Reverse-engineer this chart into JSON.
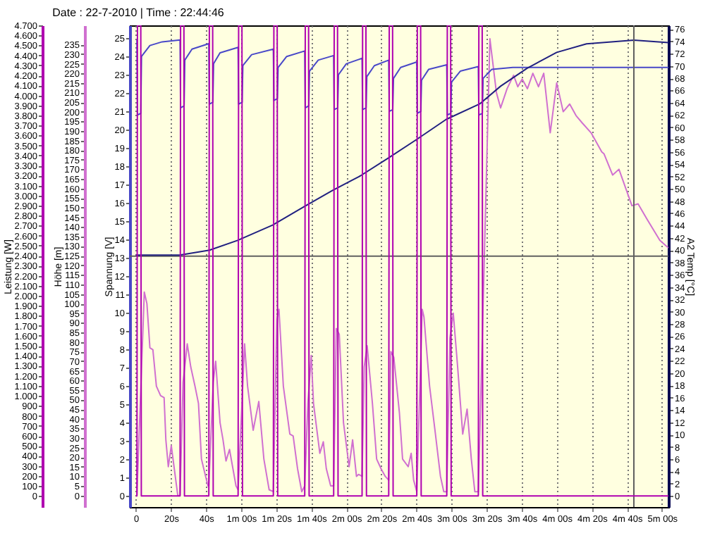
{
  "chart_data": [
    {
      "type": "line",
      "title": "Date : 22-7-2010 | Time : 22:44:46",
      "ylabel": "Spannung [V]",
      "y2label": "A2 Temp [°C]",
      "y3label": "Höhe [m]",
      "xlim": [
        -3.5,
        303.7
      ],
      "xticks": [
        0,
        {
          "value": 20,
          "label": "20s"
        },
        {
          "value": 40,
          "label": "40s"
        },
        {
          "value": 60,
          "label": "1m 00s"
        },
        {
          "value": 80,
          "label": "1m 20s"
        },
        {
          "value": 100,
          "label": "1m 40s"
        },
        {
          "value": 120,
          "label": "2m 00s"
        },
        {
          "value": 140,
          "label": "2m 20s"
        },
        {
          "value": 160,
          "label": "2m 40s"
        },
        {
          "value": 180,
          "label": "3m 00s"
        },
        {
          "value": 200,
          "label": "3m 20s"
        },
        {
          "value": 220,
          "label": "3m 40s"
        },
        {
          "value": 240,
          "label": "4m 00s"
        },
        {
          "value": 260,
          "label": "4m 20s"
        },
        {
          "value": 280,
          "label": "4m 40s"
        },
        {
          "value": 300,
          "label": "5m 00s"
        }
      ],
      "ylim": [
        -0.6,
        25.7
      ],
      "yticks": [
        0,
        1,
        2,
        3,
        4,
        5,
        6,
        7,
        8,
        9,
        10,
        11,
        12,
        13,
        14,
        15,
        16,
        17,
        18,
        19,
        20,
        21,
        22,
        23,
        24,
        25
      ],
      "y2lim": [
        -1.8,
        76.6
      ],
      "y2ticks": [
        0,
        2,
        4,
        6,
        8,
        10,
        12,
        14,
        16,
        18,
        20,
        22,
        24,
        26,
        28,
        30,
        32,
        34,
        36,
        38,
        40,
        42,
        44,
        46,
        48,
        50,
        52,
        54,
        56,
        58,
        60,
        62,
        64,
        66,
        68,
        70,
        72,
        74,
        76
      ],
      "y3lim": [
        -6,
        245
      ],
      "y3ticks": [
        0,
        5,
        10,
        15,
        20,
        25,
        30,
        35,
        40,
        45,
        50,
        55,
        60,
        65,
        70,
        75,
        80,
        85,
        90,
        95,
        100,
        105,
        110,
        115,
        120,
        125,
        130,
        135,
        140,
        145,
        150,
        155,
        160,
        165,
        170,
        175,
        180,
        185,
        190,
        195,
        200,
        205,
        210,
        215,
        220,
        225,
        230,
        235
      ],
      "grid": "x",
      "series": [
        {
          "axis": "y3",
          "color": "#d070d0",
          "x": [
            0.6,
            4.8,
            6.3,
            8,
            9.7,
            11.7,
            14.1,
            16.1,
            17.1,
            18.5,
            20.2,
            21.9,
            23.9,
            25.2,
            26.9,
            29.3,
            31.3,
            33.7,
            35.7,
            37.4,
            38.7,
            41.1,
            41.6,
            44.1,
            45.5,
            48,
            49.7,
            51.4,
            53.4,
            57.1,
            58.3,
            62,
            63.7,
            66.9,
            70.1,
            73,
            76,
            78.4,
            80.4,
            81.6,
            84.1,
            87.8,
            89.7,
            92.2,
            94.6,
            96.3,
            98.1,
            100,
            101.3,
            104.9,
            106.9,
            108.6,
            111.1,
            112.8,
            114.3,
            116,
            118.4,
            121.6,
            123.6,
            125.8,
            127,
            129,
            130.2,
            131.9,
            134.9,
            137.3,
            139.8,
            142.2,
            144.2,
            145.4,
            147.1,
            150.3,
            152.1,
            155.3,
            157,
            158.4,
            160.2,
            163.3,
            164.3,
            167.5,
            170.7,
            173.7,
            175.6,
            177.3,
            179.1,
            181,
            183.5,
            186.4,
            188.9,
            191.3,
            193.3,
            195.3,
            201.9,
            205.6,
            208,
            211.7,
            215.4,
            217.8,
            220.3,
            223.3,
            226.4,
            229.6,
            232.6,
            236.3,
            240,
            243.7,
            247.4,
            251,
            254.7,
            259.6,
            265.7,
            267,
            271.9,
            275.5,
            282.9,
            286.4,
            291.5,
            298.8,
            303.7
          ],
          "values": [
            0,
            106,
            100,
            77,
            76,
            57,
            52,
            51,
            29,
            15,
            26,
            14,
            0,
            0,
            59,
            79,
            67,
            57,
            48,
            19,
            14,
            5,
            5,
            59,
            70,
            38,
            29,
            18,
            24,
            5,
            3,
            79,
            57,
            34,
            49,
            19,
            3,
            2,
            92,
            97,
            57,
            32,
            31,
            14,
            2,
            5,
            48,
            73,
            48,
            22,
            28,
            14,
            5,
            5,
            87,
            84,
            38,
            15,
            29,
            10,
            11,
            10,
            67,
            78,
            48,
            19,
            14,
            10,
            8,
            75,
            72,
            43,
            19,
            15,
            22,
            8,
            2,
            97,
            93,
            57,
            33,
            10,
            2,
            2,
            82,
            95,
            67,
            32,
            45,
            19,
            2,
            2,
            238,
            210,
            202,
            212,
            219,
            213,
            217,
            212,
            220,
            213,
            220,
            189,
            215,
            200,
            204,
            198,
            194,
            189,
            179,
            178,
            167,
            170,
            151,
            152,
            144,
            133,
            129
          ]
        },
        {
          "axis": "y",
          "color": "#4848c8",
          "x": [
            0.6,
            0.9,
            2.8,
            3.2,
            8,
            15,
            25.2,
            25.5,
            27.5,
            27.9,
            32,
            41.6,
            41.9,
            43.9,
            44.3,
            48,
            58.3,
            58.6,
            60.6,
            61,
            66,
            78.4,
            78.7,
            80.7,
            81.1,
            86,
            96.3,
            96.6,
            98.6,
            99,
            104,
            112.8,
            113.1,
            115.1,
            115.5,
            120,
            129,
            129.3,
            131.3,
            131.7,
            136,
            144.2,
            144.5,
            146.5,
            146.9,
            151,
            160.2,
            160.5,
            162.5,
            162.9,
            167,
            177.3,
            177.6,
            179.6,
            180,
            185,
            195.3,
            195.6,
            197.6,
            198,
            203,
            215,
            303.7
          ],
          "values": [
            24.9,
            20.8,
            20.9,
            24.0,
            24.6,
            24.8,
            24.9,
            21.2,
            21.3,
            23.8,
            24.4,
            24.7,
            21.4,
            21.5,
            23.6,
            24.2,
            24.5,
            21.4,
            21.5,
            23.5,
            24.1,
            24.4,
            21.6,
            21.7,
            23.4,
            24.0,
            24.3,
            21.2,
            21.3,
            23.2,
            23.8,
            24.05,
            21.1,
            21.2,
            23.0,
            23.6,
            23.9,
            21.1,
            21.2,
            22.9,
            23.5,
            23.8,
            21.0,
            21.1,
            22.8,
            23.4,
            23.7,
            20.9,
            21.0,
            22.7,
            23.3,
            23.55,
            20.8,
            20.9,
            22.6,
            23.2,
            23.45,
            20.8,
            20.9,
            22.8,
            23.3,
            23.4,
            23.4
          ]
        },
        {
          "axis": "y2",
          "color": "#202080",
          "x": [
            0,
            25,
            42,
            58,
            78,
            96,
            112,
            128,
            144,
            160,
            177,
            196,
            208,
            223,
            240,
            257,
            284,
            303.7
          ],
          "values": [
            39.2,
            39.2,
            40.0,
            41.6,
            44.1,
            47.1,
            49.7,
            52.1,
            55.0,
            58.0,
            61.3,
            63.8,
            66.7,
            69.6,
            72.2,
            73.6,
            74.2,
            73.8
          ]
        }
      ],
      "ref_lines": [
        {
          "axis": "y",
          "value": 13.1,
          "color": "#606060"
        },
        {
          "axis": "x",
          "value": 284,
          "color": "#606060"
        }
      ]
    },
    {
      "type": "line",
      "ylabel": "Leistung [W]",
      "xlim": [
        -3.5,
        303.7
      ],
      "ylim": [
        -110,
        4700
      ],
      "tick_labels": "y",
      "yticks": [
        0,
        100,
        200,
        300,
        400,
        500,
        600,
        700,
        800,
        900,
        {
          "value": 1000,
          "label": "1.000"
        },
        {
          "value": 1100,
          "label": "1.100"
        },
        {
          "value": 1200,
          "label": "1.200"
        },
        {
          "value": 1300,
          "label": "1.300"
        },
        {
          "value": 1400,
          "label": "1.400"
        },
        {
          "value": 1500,
          "label": "1.500"
        },
        {
          "value": 1600,
          "label": "1.600"
        },
        {
          "value": 1700,
          "label": "1.700"
        },
        {
          "value": 1800,
          "label": "1.800"
        },
        {
          "value": 1900,
          "label": "1.900"
        },
        {
          "value": 2000,
          "label": "2.000"
        },
        {
          "value": 2100,
          "label": "2.100"
        },
        {
          "value": 2200,
          "label": "2.200"
        },
        {
          "value": 2300,
          "label": "2.300"
        },
        {
          "value": 2400,
          "label": "2.400"
        },
        {
          "value": 2500,
          "label": "2.500"
        },
        {
          "value": 2600,
          "label": "2.600"
        },
        {
          "value": 2700,
          "label": "2.700"
        },
        {
          "value": 2800,
          "label": "2.800"
        },
        {
          "value": 2900,
          "label": "2.900"
        },
        {
          "value": 3000,
          "label": "3.000"
        },
        {
          "value": 3100,
          "label": "3.100"
        },
        {
          "value": 3200,
          "label": "3.200"
        },
        {
          "value": 3300,
          "label": "3.300"
        },
        {
          "value": 3400,
          "label": "3.400"
        },
        {
          "value": 3500,
          "label": "3.500"
        },
        {
          "value": 3600,
          "label": "3.600"
        },
        {
          "value": 3700,
          "label": "3.700"
        },
        {
          "value": 3800,
          "label": "3.800"
        },
        {
          "value": 3900,
          "label": "3.900"
        },
        {
          "value": 4000,
          "label": "4.000"
        },
        {
          "value": 4100,
          "label": "4.100"
        },
        {
          "value": 4200,
          "label": "4.200"
        },
        {
          "value": 4300,
          "label": "4.300"
        },
        {
          "value": 4400,
          "label": "4.400"
        },
        {
          "value": 4500,
          "label": "4.500"
        },
        {
          "value": 4600,
          "label": "4.600"
        },
        {
          "value": 4700,
          "label": "4.700"
        }
      ],
      "series": [
        {
          "color": "#b000b0",
          "x": [
            0,
            0.6,
            0.9,
            2.8,
            3.1,
            25.2,
            25.5,
            27.4,
            27.7,
            41.6,
            41.9,
            43.8,
            44.1,
            58.3,
            58.6,
            60.5,
            60.8,
            78.4,
            78.7,
            80.6,
            80.9,
            96.3,
            96.6,
            98.5,
            98.8,
            112.8,
            113.1,
            115,
            115.3,
            129,
            129.3,
            131.2,
            131.5,
            144.2,
            144.5,
            146.4,
            146.7,
            160.2,
            160.5,
            162.4,
            162.7,
            177.3,
            177.6,
            179.5,
            179.8,
            195.3,
            195.6,
            197.5,
            197.8,
            303.7
          ],
          "values": [
            0,
            0,
            4700,
            4700,
            0,
            0,
            4700,
            4700,
            0,
            0,
            4700,
            4700,
            0,
            0,
            4700,
            4700,
            0,
            0,
            4700,
            4700,
            0,
            0,
            4700,
            4700,
            0,
            0,
            4700,
            4700,
            0,
            0,
            4700,
            4700,
            0,
            0,
            4700,
            4700,
            0,
            0,
            4700,
            4700,
            0,
            0,
            4700,
            4700,
            0,
            0,
            4700,
            4700,
            0,
            0
          ]
        }
      ]
    }
  ]
}
